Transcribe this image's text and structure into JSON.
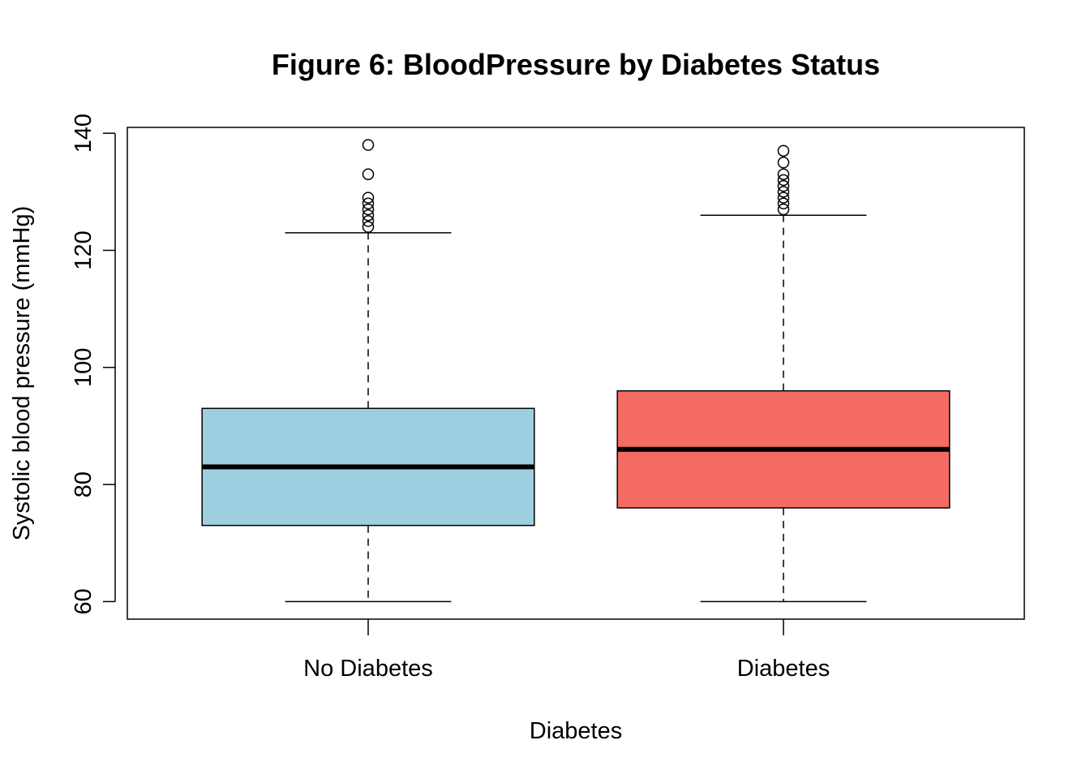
{
  "chart_data": {
    "type": "boxplot",
    "title": "Figure 6: BloodPressure by Diabetes Status",
    "xlabel": "Diabetes",
    "ylabel": "Systolic blood pressure (mmHg)",
    "categories": [
      "No Diabetes",
      "Diabetes"
    ],
    "ylim": [
      57,
      141
    ],
    "yticks": [
      60,
      80,
      100,
      120,
      140
    ],
    "grid": false,
    "boxes": [
      {
        "category": "No Diabetes",
        "color": "#9ECFE0",
        "whisker_low": 60,
        "q1": 73,
        "median": 83,
        "q3": 93,
        "whisker_high": 123,
        "outliers": [
          124,
          125,
          126,
          127,
          128,
          129,
          133,
          138
        ]
      },
      {
        "category": "Diabetes",
        "color": "#F46B63",
        "whisker_low": 60,
        "q1": 76,
        "median": 86,
        "q3": 96,
        "whisker_high": 126,
        "outliers": [
          127,
          128,
          129,
          130,
          131,
          132,
          133,
          135,
          137
        ]
      }
    ]
  }
}
